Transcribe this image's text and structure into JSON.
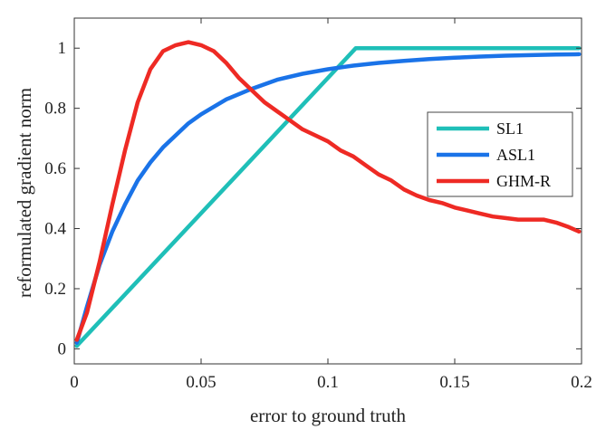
{
  "chart_data": {
    "type": "line",
    "xlabel": "error to ground truth",
    "ylabel": "reformulated gradient norm",
    "xlim": [
      0,
      0.2
    ],
    "ylim": [
      -0.05,
      1.1
    ],
    "xticks": [
      0,
      0.05,
      0.1,
      0.15,
      0.2
    ],
    "xtick_labels": [
      "0",
      "0.05",
      "0.1",
      "0.15",
      "0.2"
    ],
    "yticks": [
      0,
      0.2,
      0.4,
      0.6,
      0.8,
      1
    ],
    "ytick_labels": [
      "0",
      "0.2",
      "0.4",
      "0.6",
      "0.8",
      "1"
    ],
    "grid": false,
    "legend_position": "right",
    "series": [
      {
        "name": "SL1",
        "color": "#1fbfb8",
        "x": [
          0.001,
          0.111,
          0.199
        ],
        "y": [
          0.01,
          1.0,
          1.0
        ]
      },
      {
        "name": "ASL1",
        "color": "#1a73e8",
        "x": [
          0.001,
          0.005,
          0.01,
          0.015,
          0.02,
          0.025,
          0.03,
          0.035,
          0.04,
          0.045,
          0.05,
          0.06,
          0.07,
          0.08,
          0.09,
          0.1,
          0.11,
          0.12,
          0.13,
          0.14,
          0.15,
          0.16,
          0.17,
          0.18,
          0.19,
          0.199
        ],
        "y": [
          0.02,
          0.14,
          0.28,
          0.39,
          0.48,
          0.56,
          0.62,
          0.67,
          0.71,
          0.75,
          0.78,
          0.83,
          0.865,
          0.895,
          0.915,
          0.93,
          0.942,
          0.951,
          0.958,
          0.964,
          0.968,
          0.972,
          0.975,
          0.977,
          0.979,
          0.98
        ]
      },
      {
        "name": "GHM-R",
        "color": "#ee2a24",
        "x": [
          0.001,
          0.005,
          0.01,
          0.015,
          0.02,
          0.025,
          0.03,
          0.035,
          0.04,
          0.045,
          0.05,
          0.055,
          0.06,
          0.065,
          0.07,
          0.075,
          0.08,
          0.085,
          0.09,
          0.095,
          0.1,
          0.105,
          0.11,
          0.115,
          0.12,
          0.125,
          0.13,
          0.135,
          0.14,
          0.145,
          0.15,
          0.155,
          0.16,
          0.165,
          0.17,
          0.175,
          0.18,
          0.185,
          0.19,
          0.195,
          0.199
        ],
        "y": [
          0.03,
          0.12,
          0.29,
          0.48,
          0.66,
          0.82,
          0.93,
          0.99,
          1.01,
          1.02,
          1.01,
          0.99,
          0.95,
          0.9,
          0.86,
          0.82,
          0.79,
          0.76,
          0.73,
          0.71,
          0.69,
          0.66,
          0.64,
          0.61,
          0.58,
          0.56,
          0.53,
          0.51,
          0.495,
          0.485,
          0.47,
          0.46,
          0.45,
          0.44,
          0.435,
          0.43,
          0.43,
          0.43,
          0.42,
          0.405,
          0.39
        ]
      }
    ]
  }
}
